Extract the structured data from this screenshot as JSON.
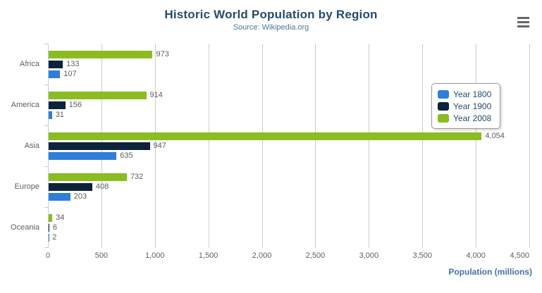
{
  "chart_data": {
    "type": "bar",
    "orientation": "horizontal",
    "title": "Historic World Population by Region",
    "subtitle": "Source: Wikipedia.org",
    "categories": [
      "Africa",
      "America",
      "Asia",
      "Europe",
      "Oceania"
    ],
    "series": [
      {
        "name": "Year 1800",
        "color": "#2f7ed8",
        "values": [
          107,
          31,
          635,
          203,
          2
        ]
      },
      {
        "name": "Year 1900",
        "color": "#0d233a",
        "values": [
          133,
          156,
          947,
          408,
          6
        ]
      },
      {
        "name": "Year 2008",
        "color": "#8bbc21",
        "values": [
          973,
          914,
          4054,
          732,
          34
        ]
      }
    ],
    "bar_display_order_top_to_bottom": [
      "Year 2008",
      "Year 1900",
      "Year 1800"
    ],
    "data_labels": [
      "973",
      "133",
      "107",
      "914",
      "156",
      "31",
      "4,054",
      "947",
      "635",
      "732",
      "408",
      "203",
      "34",
      "6",
      "2"
    ],
    "xlabel": "Population (millions)",
    "xlim": [
      0,
      4500
    ],
    "x_ticks": [
      "0",
      "500",
      "1,000",
      "1,500",
      "2,000",
      "2,500",
      "3,000",
      "3,500",
      "4,000",
      "4,500"
    ],
    "grid": true,
    "legend_position": "right",
    "legend_entries": [
      "Year 1800",
      "Year 1900",
      "Year 2008"
    ]
  },
  "colors": {
    "title": "#274b6d",
    "subtitle": "#4d759e",
    "axis_title": "#4572a7",
    "axis_line": "#c0d0e0",
    "gridline": "#cccccc",
    "labels": "#606060"
  },
  "menu": {
    "icon": "hamburger-menu"
  }
}
